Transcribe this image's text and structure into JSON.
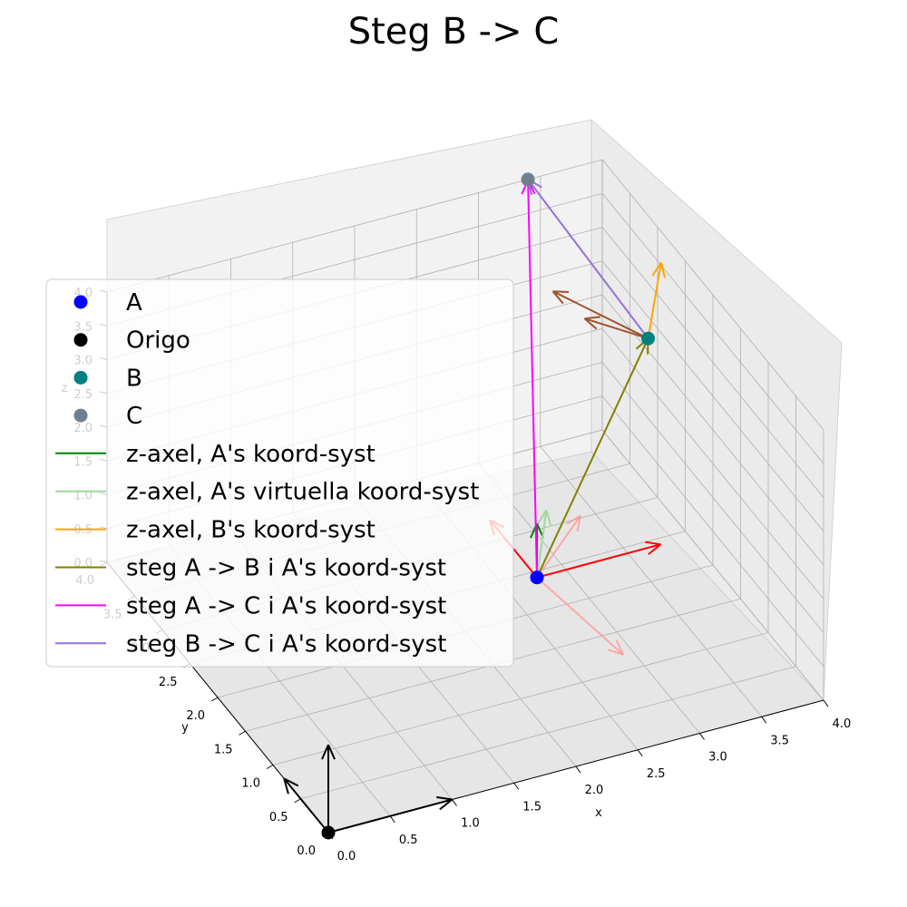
{
  "chart_data": {
    "type": "scatter3d",
    "title": "Steg B -> C",
    "xlabel": "x",
    "ylabel": "y",
    "zlabel": "z",
    "xlim": [
      0,
      4
    ],
    "ylim": [
      0,
      4
    ],
    "zlim": [
      0,
      4
    ],
    "x_ticks": [
      "0.0",
      "0.5",
      "1.0",
      "1.5",
      "2.0",
      "2.5",
      "3.0",
      "3.5",
      "4.0"
    ],
    "y_ticks": [
      "0.0",
      "0.5",
      "1.0",
      "1.5",
      "2.0",
      "2.5",
      "3.0",
      "3.5",
      "4.0"
    ],
    "z_ticks": [
      "0.0",
      "0.5",
      "1.0",
      "1.5",
      "2.0",
      "2.5",
      "3.0",
      "3.5",
      "4.0"
    ],
    "grid": true,
    "legend_position": "center-left",
    "points": [
      {
        "label": "A",
        "x": 2.4,
        "y": 1.6,
        "z": 1.0,
        "color": "#0000ff"
      },
      {
        "label": "Origo",
        "x": 0.0,
        "y": 0.0,
        "z": 0.0,
        "color": "#000000"
      },
      {
        "label": "B",
        "x": 3.7,
        "y": 2.5,
        "z": 3.0,
        "color": "#008080"
      },
      {
        "label": "C",
        "x": 3.4,
        "y": 4.0,
        "z": 4.0,
        "color": "#708090"
      }
    ],
    "lines": [
      {
        "label": "z-axel, A's koord-syst",
        "color": "#008000",
        "from": "A",
        "to": [
          2.4,
          1.6,
          1.8
        ]
      },
      {
        "label": "z-axel, A's virtuella koord-syst",
        "color": "#9fd89f",
        "from": "A",
        "to": [
          2.7,
          2.1,
          1.35
        ]
      },
      {
        "label": "z-axel, B's koord-syst",
        "color": "#ffa500",
        "from": "B",
        "to": [
          3.85,
          2.6,
          3.95
        ]
      },
      {
        "label": "steg A -> B i A's koord-syst",
        "color": "#808000",
        "from": "A",
        "to": "B"
      },
      {
        "label": "steg A -> C i A's koord-syst",
        "color": "#ff00ff",
        "from": "A",
        "to": "C"
      },
      {
        "label": "steg B -> C i A's koord-syst",
        "color": "#9370db",
        "from": "B",
        "to": "C"
      }
    ],
    "axes_arrows": {
      "origin": {
        "color": "#000000",
        "at": "Origo"
      },
      "A": {
        "color": "#ff0000",
        "at": "A"
      },
      "A_virtual": {
        "color": "#ff9a9a",
        "at": "A"
      },
      "B": {
        "color": "#a0522d",
        "at": "B"
      }
    }
  }
}
